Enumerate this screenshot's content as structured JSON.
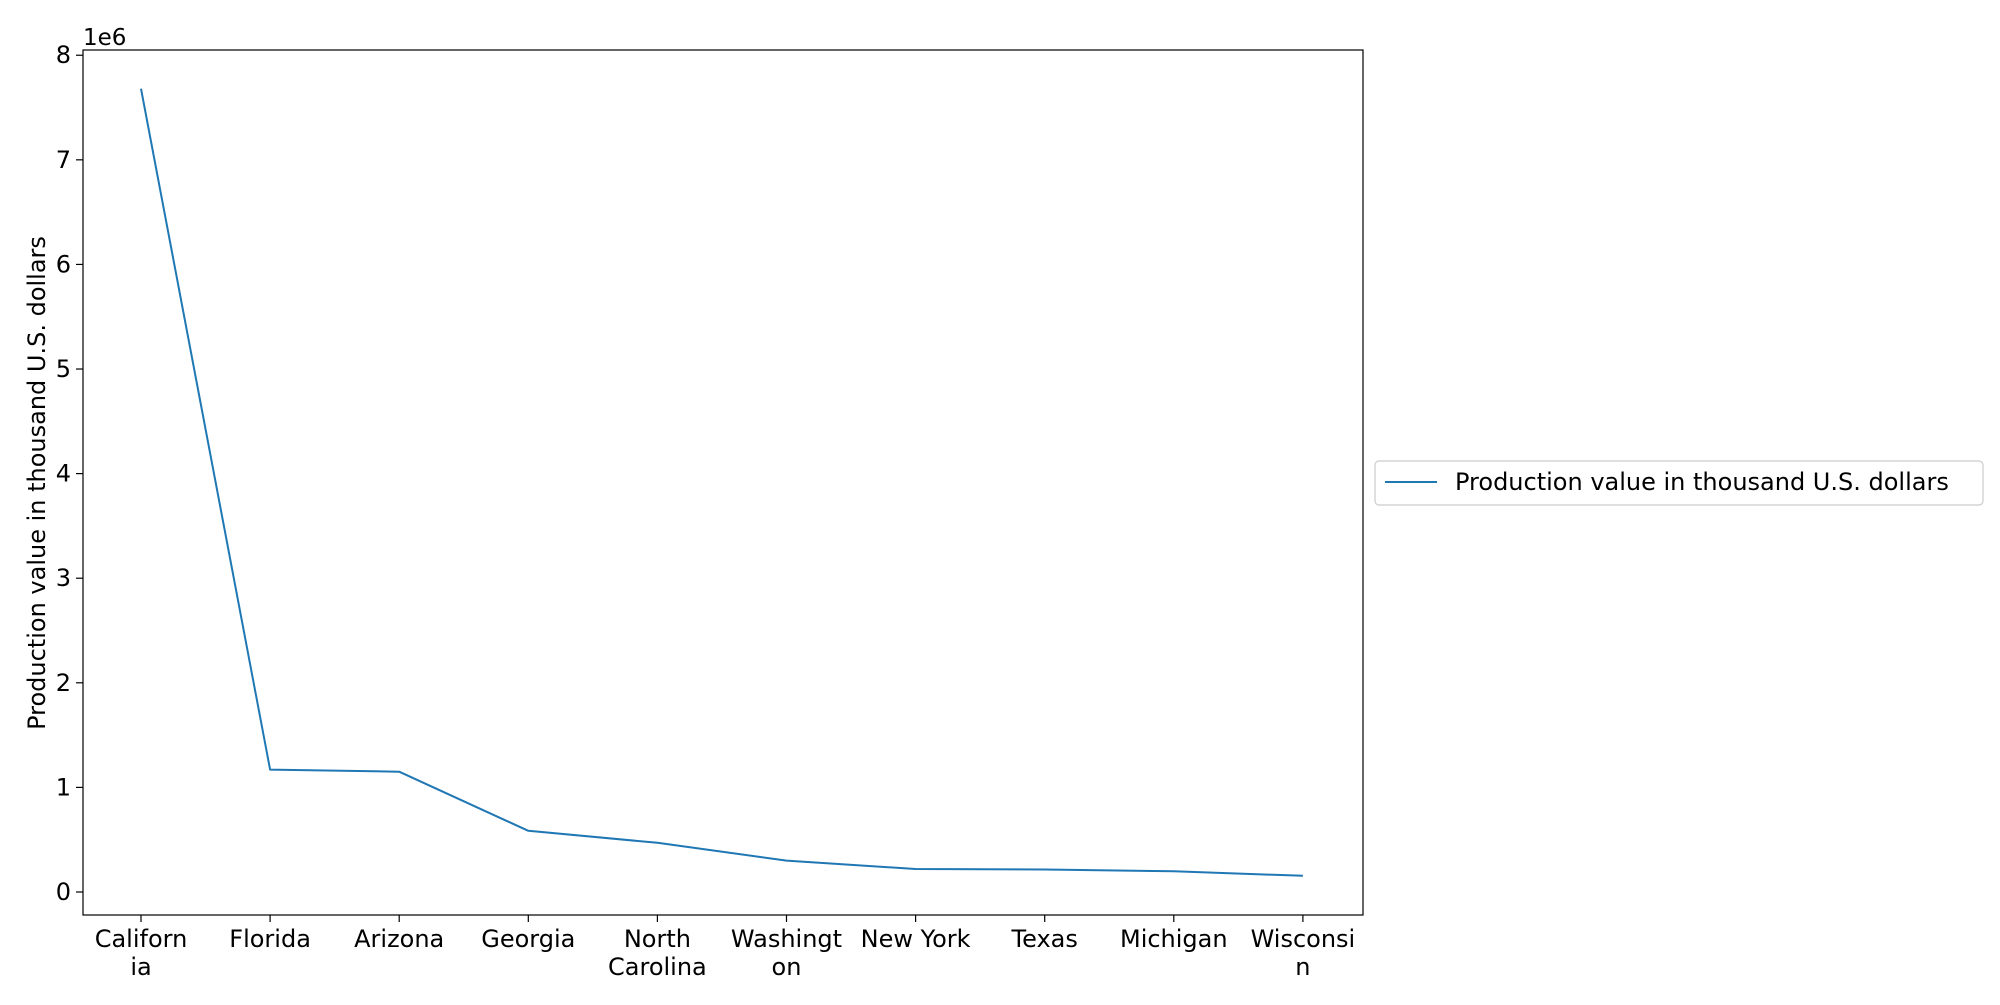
{
  "chart_data": {
    "type": "line",
    "title": "",
    "xlabel": "",
    "ylabel": "Production value in thousand U.S. dollars",
    "y_scale_label": "1e6",
    "categories": [
      [
        "Californ",
        "ia"
      ],
      [
        "Florida"
      ],
      [
        "Arizona"
      ],
      [
        "Georgia"
      ],
      [
        "North",
        "Carolina"
      ],
      [
        "Washingt",
        "on"
      ],
      [
        "New York"
      ],
      [
        "Texas"
      ],
      [
        "Michigan"
      ],
      [
        "Wisconsi",
        "n"
      ]
    ],
    "series": [
      {
        "name": "Production value in thousand U.S. dollars",
        "color": "#1f77b4",
        "values": [
          7680000,
          1170000,
          1150000,
          585000,
          470000,
          300000,
          220000,
          215000,
          198000,
          155000
        ]
      }
    ],
    "ylim": [
      -220000,
      8050000
    ],
    "yticks": [
      0,
      1000000,
      2000000,
      3000000,
      4000000,
      5000000,
      6000000,
      7000000,
      8000000
    ],
    "ytick_labels": [
      "0",
      "1",
      "2",
      "3",
      "4",
      "5",
      "6",
      "7",
      "8"
    ],
    "grid": false,
    "legend_position": "right-center-outside"
  }
}
